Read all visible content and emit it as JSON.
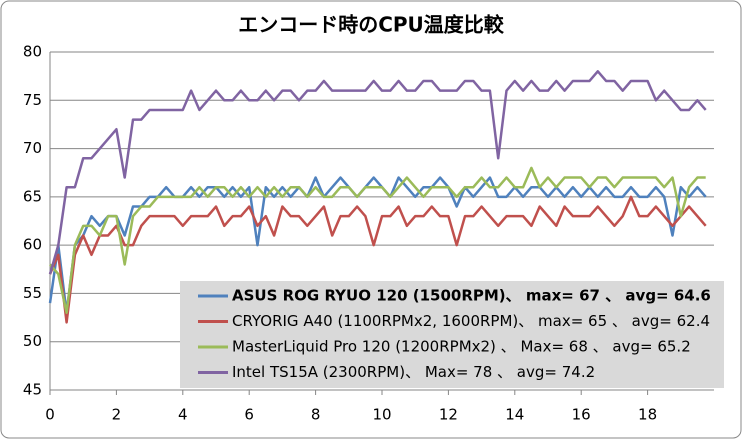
{
  "chart_data": {
    "type": "line",
    "title": "エンコード時のCPU温度比較",
    "x": [
      0,
      0.25,
      0.5,
      0.75,
      1,
      1.25,
      1.5,
      1.75,
      2,
      2.25,
      2.5,
      2.75,
      3,
      3.25,
      3.5,
      3.75,
      4,
      4.25,
      4.5,
      4.75,
      5,
      5.25,
      5.5,
      5.75,
      6,
      6.25,
      6.5,
      6.75,
      7,
      7.25,
      7.5,
      7.75,
      8,
      8.25,
      8.5,
      8.75,
      9,
      9.25,
      9.5,
      9.75,
      10,
      10.25,
      10.5,
      10.75,
      11,
      11.25,
      11.5,
      11.75,
      12,
      12.25,
      12.5,
      12.75,
      13,
      13.25,
      13.5,
      13.75,
      14,
      14.25,
      14.5,
      14.75,
      15,
      15.25,
      15.5,
      15.75,
      16,
      16.25,
      16.5,
      16.75,
      17,
      17.25,
      17.5,
      17.75,
      18,
      18.25,
      18.5,
      18.75,
      19,
      19.25,
      19.5,
      19.75
    ],
    "series": [
      {
        "name": "ASUS ROG RYUO 120 (1500RPM)、 max= 67 、 avg= 64.6",
        "color": "#4f81bd",
        "values": [
          54,
          60,
          53,
          60,
          61,
          63,
          62,
          63,
          63,
          61,
          64,
          64,
          65,
          65,
          66,
          65,
          65,
          66,
          65,
          66,
          66,
          65,
          66,
          65,
          66,
          60,
          66,
          65,
          66,
          65,
          66,
          65,
          67,
          65,
          66,
          67,
          66,
          65,
          66,
          67,
          66,
          65,
          67,
          66,
          65,
          66,
          66,
          67,
          66,
          64,
          66,
          65,
          66,
          67,
          65,
          65,
          66,
          65,
          66,
          66,
          65,
          66,
          65,
          66,
          65,
          66,
          65,
          66,
          65,
          65,
          66,
          65,
          65,
          66,
          65,
          61,
          66,
          65,
          66,
          65
        ]
      },
      {
        "name": "CRYORIG A40 (1100RPMx2, 1600RPM)、 max= 65 、 avg= 62.4",
        "color": "#c0504d",
        "values": [
          57,
          59,
          52,
          59,
          61,
          59,
          61,
          61,
          62,
          60,
          60,
          62,
          63,
          63,
          63,
          63,
          62,
          63,
          63,
          63,
          64,
          62,
          63,
          63,
          64,
          62,
          63,
          61,
          64,
          63,
          63,
          62,
          63,
          64,
          61,
          63,
          63,
          64,
          63,
          60,
          63,
          63,
          64,
          62,
          63,
          63,
          64,
          63,
          63,
          60,
          63,
          63,
          64,
          63,
          62,
          63,
          63,
          63,
          62,
          64,
          63,
          62,
          64,
          63,
          63,
          63,
          64,
          63,
          62,
          63,
          65,
          63,
          63,
          64,
          63,
          62,
          63,
          64,
          63,
          62
        ]
      },
      {
        "name": "MasterLiquid Pro 120 (1200RPMx2) 、 Max= 68 、 avg= 65.2",
        "color": "#9bbb59",
        "values": [
          58,
          57,
          53,
          60,
          62,
          62,
          61,
          63,
          63,
          58,
          63,
          64,
          64,
          65,
          65,
          65,
          65,
          65,
          66,
          65,
          66,
          66,
          65,
          66,
          65,
          66,
          65,
          66,
          65,
          66,
          66,
          65,
          66,
          65,
          65,
          66,
          66,
          65,
          66,
          66,
          66,
          65,
          66,
          67,
          66,
          65,
          66,
          66,
          66,
          65,
          66,
          66,
          67,
          66,
          66,
          67,
          66,
          66,
          68,
          66,
          67,
          66,
          67,
          67,
          67,
          66,
          67,
          67,
          66,
          67,
          67,
          67,
          67,
          67,
          66,
          67,
          63,
          66,
          67,
          67
        ]
      },
      {
        "name": "Intel TS15A (2300RPM)、 Max= 78 、 avg= 74.2",
        "color": "#8064a2",
        "values": [
          57,
          60,
          66,
          66,
          69,
          69,
          70,
          71,
          72,
          67,
          73,
          73,
          74,
          74,
          74,
          74,
          74,
          76,
          74,
          75,
          76,
          75,
          75,
          76,
          75,
          75,
          76,
          75,
          76,
          76,
          75,
          76,
          76,
          77,
          76,
          76,
          76,
          76,
          76,
          77,
          76,
          76,
          77,
          76,
          76,
          77,
          77,
          76,
          76,
          76,
          77,
          77,
          76,
          76,
          69,
          76,
          77,
          76,
          77,
          76,
          76,
          77,
          76,
          77,
          77,
          77,
          78,
          77,
          77,
          76,
          77,
          77,
          77,
          75,
          76,
          75,
          74,
          74,
          75,
          74
        ]
      }
    ],
    "xlim": [
      0,
      20
    ],
    "xticks": [
      0,
      2,
      4,
      6,
      8,
      10,
      12,
      14,
      16,
      18
    ],
    "ylim": [
      45,
      80
    ],
    "yticks": [
      45,
      50,
      55,
      60,
      65,
      70,
      75,
      80
    ],
    "grid": true,
    "legend": "lower right"
  }
}
